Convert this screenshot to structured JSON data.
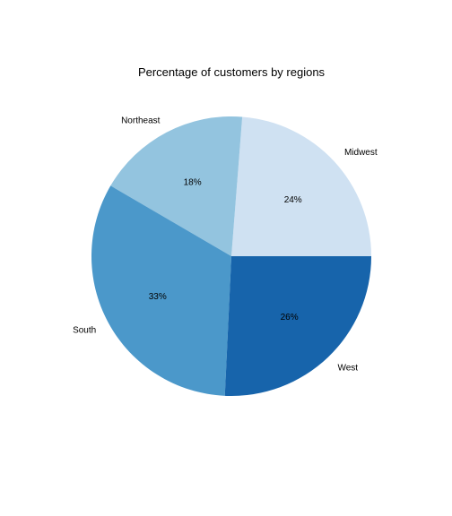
{
  "chart_data": {
    "type": "pie",
    "title": "Percentage of customers by regions",
    "categories": [
      "Midwest",
      "Northeast",
      "South",
      "West"
    ],
    "values": [
      24,
      18,
      33,
      26
    ],
    "value_labels": [
      "24%",
      "18%",
      "33%",
      "26%"
    ],
    "colors": [
      "#cfe1f2",
      "#93c4df",
      "#4b98ca",
      "#1764ab"
    ],
    "start_angle_deg": 0,
    "direction": "counterclockwise",
    "legend": "none"
  }
}
